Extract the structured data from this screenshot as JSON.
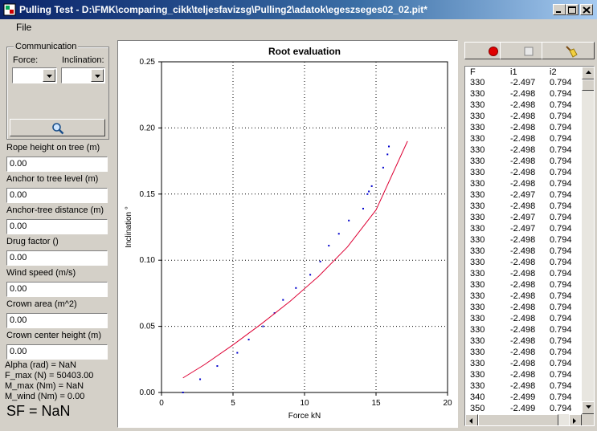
{
  "window": {
    "title": "Pulling Test - D:\\FMK\\comparing_cikk\\teljesfavizsg\\Pulling2\\adatok\\egeszseges02_02.pit*"
  },
  "menu": {
    "file": "File"
  },
  "communication": {
    "legend": "Communication",
    "force_label": "Force:",
    "inclination_label": "Inclination:",
    "force_value": "",
    "inclination_value": ""
  },
  "fields": [
    {
      "label": "Rope height on tree (m)",
      "value": "0.00"
    },
    {
      "label": "Anchor to tree level (m)",
      "value": "0.00"
    },
    {
      "label": "Anchor-tree distance (m)",
      "value": "0.00"
    },
    {
      "label": "Drug factor ()",
      "value": "0.00"
    },
    {
      "label": "Wind speed (m/s)",
      "value": "0.00"
    },
    {
      "label": "Crown area (m^2)",
      "value": "0.00"
    },
    {
      "label": "Crown center height (m)",
      "value": "0.00"
    }
  ],
  "stats": {
    "alpha": "Alpha (rad) = NaN",
    "f_max": "F_max (N) = 50403.00",
    "m_max": "M_max (Nm) = NaN",
    "m_wind": "M_wind (Nm) = 0.00",
    "sf": "SF = NaN"
  },
  "toolbar": {
    "record_icon": "record-icon",
    "stop_icon": "stop-icon",
    "clear_icon": "broom-icon",
    "record_color": "#e00000"
  },
  "table": {
    "columns": [
      "F",
      "i1",
      "i2"
    ],
    "rows": [
      [
        "330",
        "-2.497",
        "0.794"
      ],
      [
        "330",
        "-2.498",
        "0.794"
      ],
      [
        "330",
        "-2.498",
        "0.794"
      ],
      [
        "330",
        "-2.498",
        "0.794"
      ],
      [
        "330",
        "-2.498",
        "0.794"
      ],
      [
        "330",
        "-2.498",
        "0.794"
      ],
      [
        "330",
        "-2.498",
        "0.794"
      ],
      [
        "330",
        "-2.498",
        "0.794"
      ],
      [
        "330",
        "-2.498",
        "0.794"
      ],
      [
        "330",
        "-2.498",
        "0.794"
      ],
      [
        "330",
        "-2.497",
        "0.794"
      ],
      [
        "330",
        "-2.498",
        "0.794"
      ],
      [
        "330",
        "-2.497",
        "0.794"
      ],
      [
        "330",
        "-2.497",
        "0.794"
      ],
      [
        "330",
        "-2.498",
        "0.794"
      ],
      [
        "330",
        "-2.498",
        "0.794"
      ],
      [
        "330",
        "-2.498",
        "0.794"
      ],
      [
        "330",
        "-2.498",
        "0.794"
      ],
      [
        "330",
        "-2.498",
        "0.794"
      ],
      [
        "330",
        "-2.498",
        "0.794"
      ],
      [
        "330",
        "-2.498",
        "0.794"
      ],
      [
        "330",
        "-2.498",
        "0.794"
      ],
      [
        "330",
        "-2.498",
        "0.794"
      ],
      [
        "330",
        "-2.498",
        "0.794"
      ],
      [
        "330",
        "-2.498",
        "0.794"
      ],
      [
        "330",
        "-2.498",
        "0.794"
      ],
      [
        "330",
        "-2.498",
        "0.794"
      ],
      [
        "330",
        "-2.498",
        "0.794"
      ],
      [
        "340",
        "-2.499",
        "0.794"
      ],
      [
        "350",
        "-2.499",
        "0.794"
      ]
    ]
  },
  "chart_data": {
    "type": "scatter",
    "title": "Root evaluation",
    "xlabel": "Force  kN",
    "ylabel": "Inclination  °",
    "xlim": [
      0,
      20
    ],
    "ylim": [
      0,
      0.25
    ],
    "xticks": [
      "0",
      "5",
      "10",
      "15",
      "20"
    ],
    "yticks": [
      "0.00",
      "0.05",
      "0.10",
      "0.15",
      "0.20",
      "0.25"
    ],
    "grid": true,
    "series": [
      {
        "kind": "points",
        "color": "#0000cc",
        "x": [
          1.5,
          2.7,
          3.9,
          5.3,
          6.1,
          7.1,
          7.9,
          8.5,
          9.4,
          10.4,
          11.1,
          11.7,
          12.4,
          13.1,
          14.1,
          14.4,
          14.5,
          14.7,
          15.5,
          15.8,
          15.9
        ],
        "y": [
          0.0,
          0.01,
          0.02,
          0.03,
          0.04,
          0.05,
          0.06,
          0.07,
          0.079,
          0.089,
          0.099,
          0.111,
          0.12,
          0.13,
          0.139,
          0.15,
          0.152,
          0.156,
          0.17,
          0.18,
          0.186
        ]
      },
      {
        "kind": "line",
        "color": "#dd0033",
        "x": [
          1.5,
          3,
          5,
          7,
          9,
          11,
          13,
          15,
          17.2
        ],
        "y": [
          0.011,
          0.021,
          0.036,
          0.052,
          0.069,
          0.088,
          0.11,
          0.138,
          0.19
        ]
      }
    ]
  }
}
